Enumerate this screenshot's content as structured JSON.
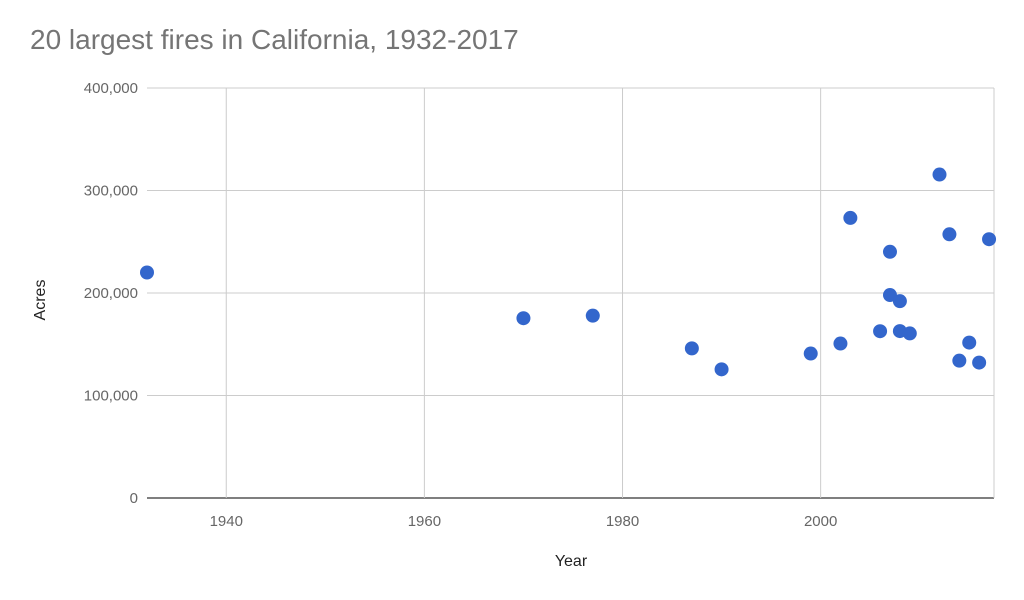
{
  "chart_data": {
    "type": "scatter",
    "title": "20 largest fires in California, 1932-2017",
    "xlabel": "Year",
    "ylabel": "Acres",
    "xlim": [
      1932,
      2017.5
    ],
    "ylim": [
      0,
      400000
    ],
    "x_ticks": [
      1940,
      1960,
      1980,
      2000
    ],
    "x_tick_labels": [
      "1940",
      "1960",
      "1980",
      "2000"
    ],
    "y_ticks": [
      0,
      100000,
      200000,
      300000,
      400000
    ],
    "y_tick_labels": [
      "0",
      "100,000",
      "200,000",
      "300,000",
      "400,000"
    ],
    "grid": true,
    "legend": "none",
    "marker_color": "#3366cc",
    "points": [
      {
        "x": 1932,
        "y": 220000
      },
      {
        "x": 1970,
        "y": 175400
      },
      {
        "x": 1977,
        "y": 177900
      },
      {
        "x": 1987,
        "y": 145980
      },
      {
        "x": 1990,
        "y": 125500
      },
      {
        "x": 1999,
        "y": 140950
      },
      {
        "x": 2002,
        "y": 150700
      },
      {
        "x": 2003,
        "y": 273250
      },
      {
        "x": 2006,
        "y": 162700
      },
      {
        "x": 2007,
        "y": 240200
      },
      {
        "x": 2007,
        "y": 197990
      },
      {
        "x": 2008,
        "y": 192040
      },
      {
        "x": 2008,
        "y": 162820
      },
      {
        "x": 2009,
        "y": 160550
      },
      {
        "x": 2012,
        "y": 315580
      },
      {
        "x": 2013,
        "y": 257300
      },
      {
        "x": 2014,
        "y": 134000
      },
      {
        "x": 2015,
        "y": 151600
      },
      {
        "x": 2016,
        "y": 132130
      },
      {
        "x": 2017,
        "y": 252500
      }
    ]
  }
}
